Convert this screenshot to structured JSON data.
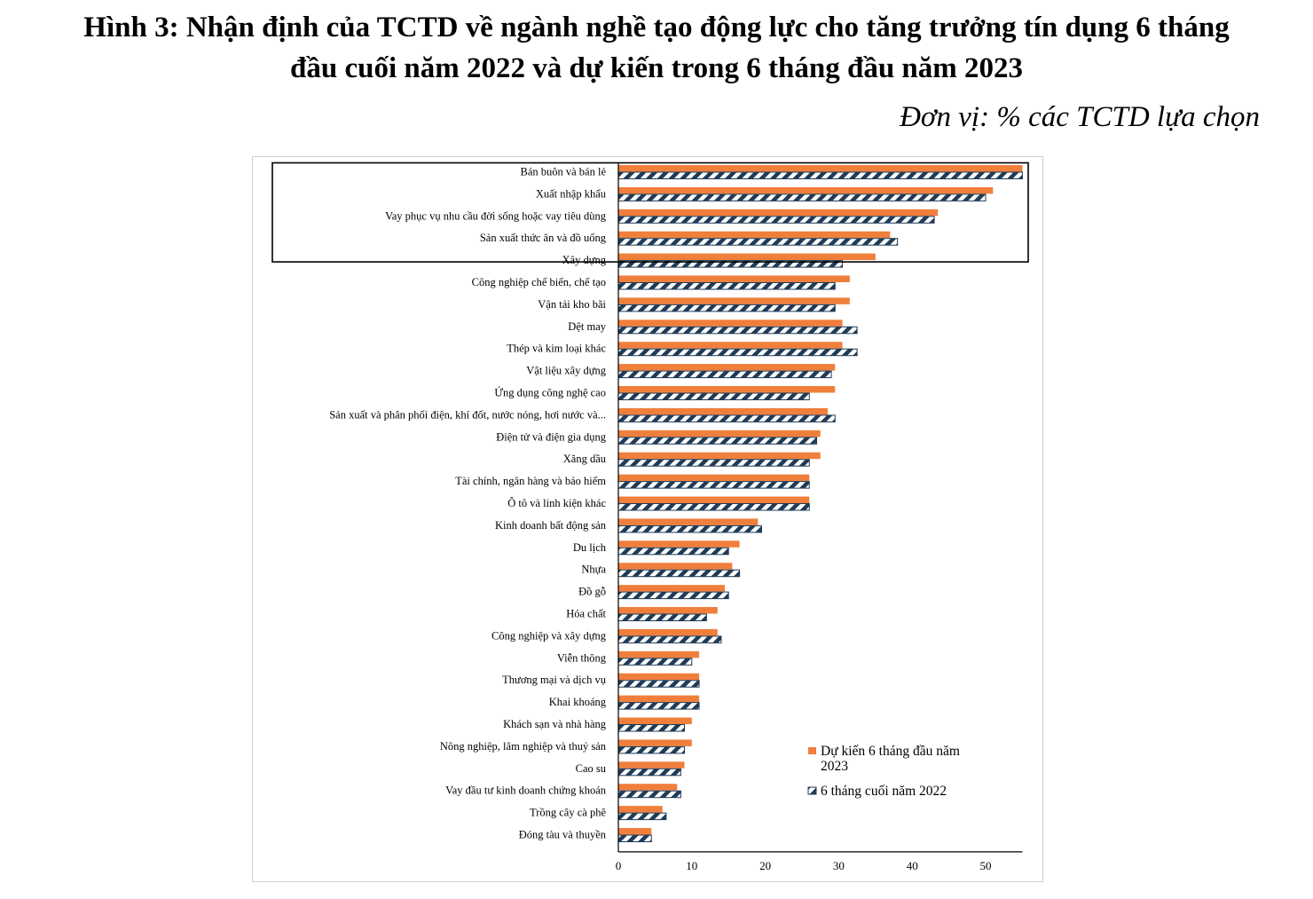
{
  "title_line1": "Hình 3: Nhận định của TCTD về ngành nghề tạo động lực cho tăng trưởng tín dụng 6 tháng",
  "title_line2": "đầu cuối năm 2022 và dự kiến trong 6 tháng đầu năm 2023",
  "unit": "Đơn vị: % các TCTD lựa chọn",
  "colors": {
    "forecast": "#F07F3C",
    "actual_fill": "#1F3B57"
  },
  "chart_data": {
    "type": "bar",
    "orientation": "horizontal",
    "title": "",
    "xlabel": "",
    "ylabel": "",
    "xlim": [
      0,
      55
    ],
    "xticks": [
      0,
      10,
      20,
      30,
      40,
      50
    ],
    "grid": false,
    "legend_position": "bottom-right",
    "highlight_box_categories": 4,
    "categories": [
      "Bán buôn và bán lẻ",
      "Xuất nhập khẩu",
      "Vay phục vụ nhu cầu đời sống hoặc vay tiêu dùng",
      "Sản xuất thức ăn và đồ uống",
      "Xây dựng",
      "Công nghiệp chế biến, chế tạo",
      "Vận tải kho bãi",
      "Dệt may",
      "Thép và kim loại khác",
      "Vật liệu xây dựng",
      "Ứng dụng công nghệ cao",
      "Sản xuất và phân phối điện, khí đốt, nước nóng, hơi nước và...",
      "Điện tử và điện gia dụng",
      "Xăng dầu",
      "Tài chính, ngân hàng và bảo hiểm",
      "Ô tô và linh kiện khác",
      "Kinh doanh bất động sản",
      "Du lịch",
      "Nhựa",
      "Đồ gỗ",
      "Hóa chất",
      "Công nghiệp và xây dựng",
      "Viễn thông",
      "Thương mại và dịch vụ",
      "Khai khoáng",
      "Khách sạn và nhà hàng",
      "Nông nghiệp, lâm nghiệp và thuỷ sản",
      "Cao su",
      "Vay đầu tư kinh doanh chứng khoán",
      "Trồng cây cà phê",
      "Đóng tàu và thuyền"
    ],
    "series": [
      {
        "name": "Dự kiến 6 tháng đầu năm 2023",
        "style": "solid",
        "values": [
          55,
          51,
          43.5,
          37,
          35,
          31.5,
          31.5,
          30.5,
          30.5,
          29.5,
          29.5,
          28.5,
          27.5,
          27.5,
          26,
          26,
          19,
          16.5,
          15.5,
          14.5,
          13.5,
          13.5,
          11,
          11,
          11,
          10,
          10,
          9,
          8,
          6,
          4.5
        ]
      },
      {
        "name": "6 tháng cuối năm 2022",
        "style": "hatched",
        "values": [
          55,
          50,
          43,
          38,
          30.5,
          29.5,
          29.5,
          32.5,
          32.5,
          29,
          26,
          29.5,
          27,
          26,
          26,
          26,
          19.5,
          15,
          16.5,
          15,
          12,
          14,
          10,
          11,
          11,
          9,
          9,
          8.5,
          8.5,
          6.5,
          4.5
        ]
      }
    ]
  }
}
